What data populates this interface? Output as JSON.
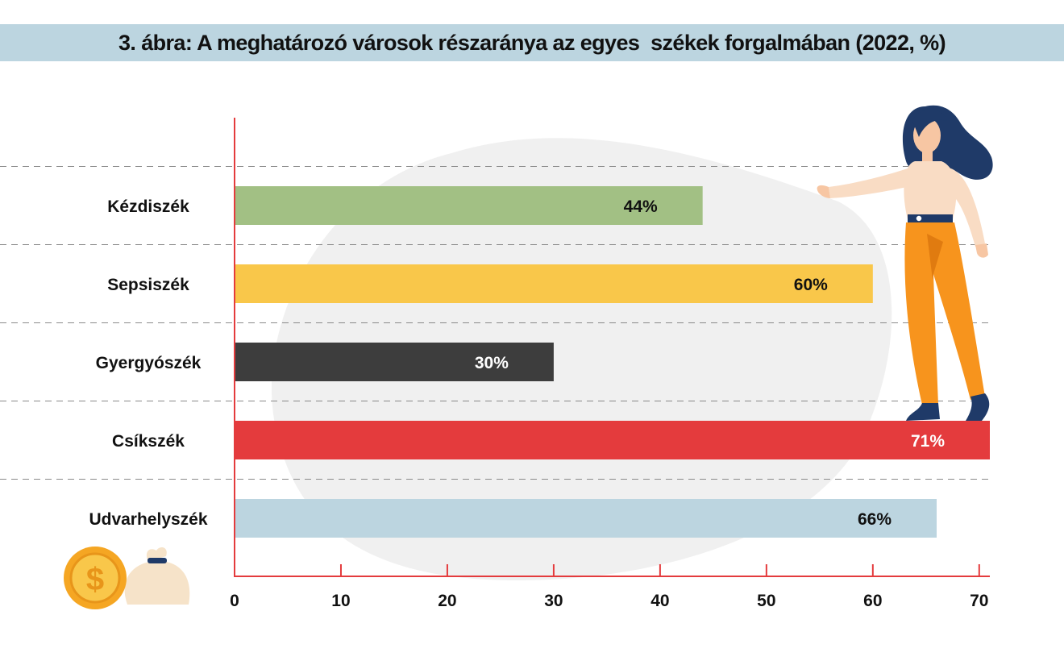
{
  "chart_data": {
    "type": "bar",
    "orientation": "horizontal",
    "title": "3. ábra: A meghatározó városok részaránya az egyes  székek forgalmában (2022, %)",
    "categories": [
      "Kézdiszék",
      "Sepsiszék",
      "Gyergyószék",
      "Csíkszék",
      "Udvarhelyszék"
    ],
    "values": [
      44,
      60,
      30,
      71,
      66
    ],
    "value_labels": [
      "44%",
      "60%",
      "30%",
      "71%",
      "66%"
    ],
    "bar_colors": [
      "#a2c084",
      "#f9c74a",
      "#3d3d3d",
      "#e43b3d",
      "#bcd5e0"
    ],
    "value_label_colors": [
      "#111111",
      "#111111",
      "#ffffff",
      "#ffffff",
      "#111111"
    ],
    "xlim": [
      0,
      71
    ],
    "xticks": [
      0,
      10,
      20,
      30,
      40,
      50,
      60,
      70
    ],
    "xtick_labels": [
      "0",
      "10",
      "20",
      "30",
      "40",
      "50",
      "60",
      "70"
    ],
    "xlabel": "",
    "ylabel": "",
    "grid": "dashed horizontal separators between categories",
    "axis_color": "#e43b3d"
  },
  "decorations": {
    "illustration": "woman-pointing-illustration",
    "coin_icon": "dollar-coin-icon",
    "bag_icon": "money-bag-icon",
    "coin_symbol": "$"
  }
}
